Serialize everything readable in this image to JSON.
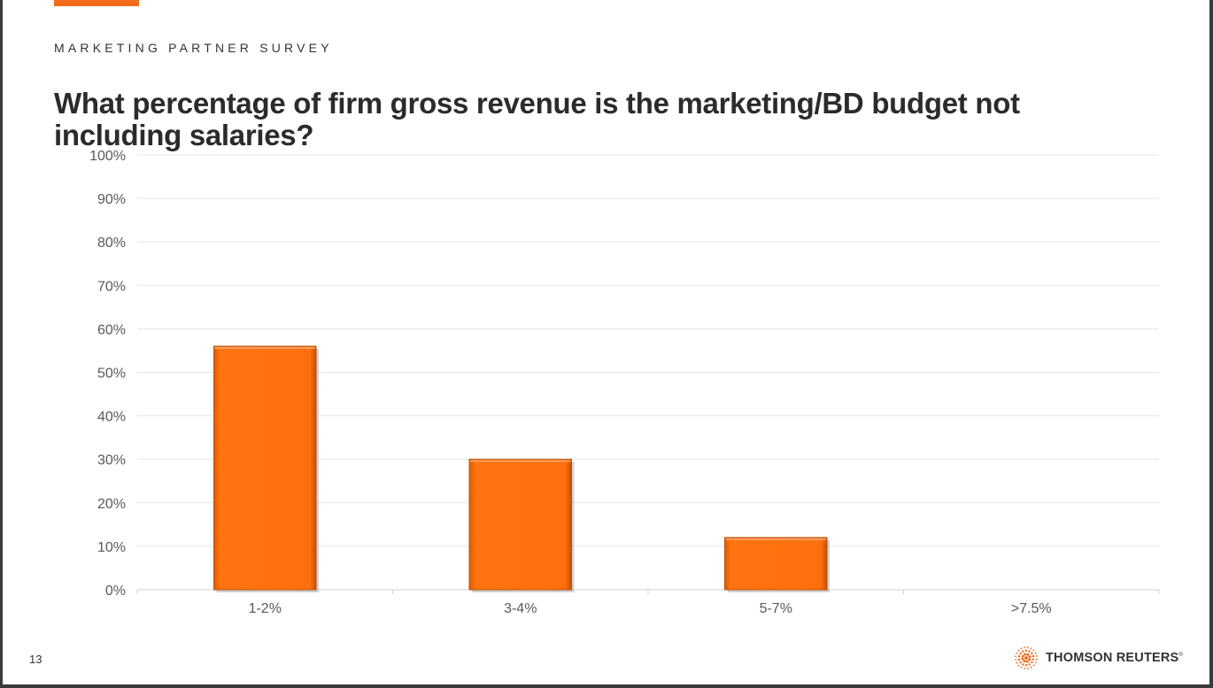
{
  "header": {
    "eyebrow": "MARKETING PARTNER SURVEY",
    "title": "What percentage of firm gross revenue is the marketing/BD budget not including salaries?"
  },
  "footer": {
    "page_number": "13",
    "brand": "THOMSON REUTERS",
    "brand_mark": "®"
  },
  "colors": {
    "accent": "#f26a1b",
    "bar": "#ff6f0d"
  },
  "chart_data": {
    "type": "bar",
    "title": "What percentage of firm gross revenue is the marketing/BD budget not including salaries?",
    "categories": [
      "1-2%",
      "3-4%",
      "5-7%",
      ">7.5%"
    ],
    "values": [
      56,
      30,
      12,
      0
    ],
    "ylim": [
      0,
      100
    ],
    "ytick_values": [
      0,
      10,
      20,
      30,
      40,
      50,
      60,
      70,
      80,
      90,
      100
    ],
    "ytick_labels": [
      "0%",
      "10%",
      "20%",
      "30%",
      "40%",
      "50%",
      "60%",
      "70%",
      "80%",
      "90%",
      "100%"
    ],
    "xlabel": "",
    "ylabel": "",
    "grid": true,
    "legend": "none"
  }
}
